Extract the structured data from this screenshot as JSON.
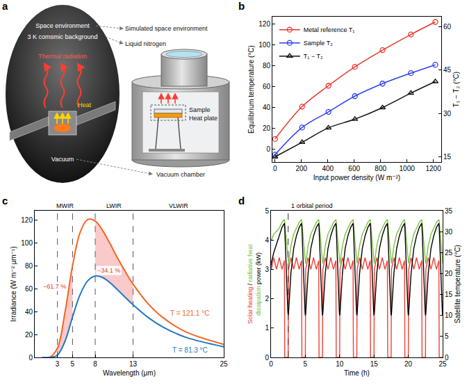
{
  "diagram": {
    "panel": "a",
    "left": {
      "space": "Space environment",
      "background": "3 K comsmic background",
      "radiation": "Thermal radiation",
      "heat": "Heat",
      "vacuum": "Vacuum"
    },
    "right": {
      "space": "Simulated space environment",
      "coolant": "Liquid nitrogen",
      "sample": "Sample",
      "plate": "Heat plate",
      "chamber": "Vacuum chamber"
    }
  },
  "chart_data": [
    {
      "panel": "b",
      "type": "scatter",
      "xlabel": "Input power density (W m⁻²)",
      "ylabel": "Equilibrium temperature (°C)",
      "y2label": "T₁ − T₂ (°C)",
      "x": [
        0,
        205,
        405,
        605,
        815,
        1030,
        1215
      ],
      "series": [
        {
          "name": "Metal reference T₁",
          "color": "#e8342a",
          "marker": "circle-open",
          "line_style": "spline",
          "values": [
            10,
            41,
            61,
            79,
            95,
            110,
            122
          ]
        },
        {
          "name": "Sample T₂",
          "color": "#2b3ff0",
          "marker": "circle-open",
          "line_style": "spline",
          "values": [
            -5,
            21,
            36,
            51,
            63,
            73,
            81
          ]
        },
        {
          "name": "T₁ − T₂",
          "color": "#111111",
          "marker": "triangle-up-open",
          "line_style": "spline",
          "axis": "y2",
          "values": [
            15,
            20,
            25,
            28,
            32,
            37,
            41
          ]
        }
      ],
      "xlim": [
        -20,
        1260
      ],
      "xticks": [
        0,
        200,
        400,
        600,
        800,
        1000,
        1200
      ],
      "ylim": [
        -12,
        127
      ],
      "yticks": [
        0,
        20,
        40,
        60,
        80,
        100,
        120
      ],
      "y2lim": [
        13.2,
        63.4
      ],
      "y2ticks": [
        15,
        30,
        45,
        60
      ],
      "legend": "top-left"
    },
    {
      "panel": "c",
      "type": "line",
      "xlabel": "Wavelength (μm)",
      "ylabel": "Irradiance (W m⁻² μm⁻¹)",
      "x": [
        1,
        2,
        3,
        4,
        5,
        6,
        7,
        8,
        9,
        10,
        11,
        12,
        13,
        15,
        17,
        20,
        25
      ],
      "series": [
        {
          "name": "T = 121.1 °C",
          "color": "#f26522",
          "line_style": "spline",
          "values": [
            0,
            0.14,
            8,
            39.5,
            80,
            109,
            120.3,
            119,
            110.5,
            98.7,
            86.2,
            74.6,
            63.9,
            46.8,
            34.5,
            22.2,
            11.4
          ]
        },
        {
          "name": "T = 81.3 °C",
          "color": "#1f77c4",
          "line_style": "spline",
          "values": [
            0,
            0.02,
            2,
            14.1,
            35.3,
            54.8,
            66.8,
            71,
            69.6,
            64.9,
            58.7,
            52.2,
            45.9,
            34.8,
            26.3,
            17.5,
            9.3
          ]
        }
      ],
      "bands": [
        {
          "name": "MWIR",
          "from": 3,
          "to": 5
        },
        {
          "name": "LWIR",
          "from": 8,
          "to": 13
        },
        {
          "name": "VLWIR",
          "from": 13,
          "to": 25
        }
      ],
      "shaded": [
        {
          "from": 3,
          "to": 5,
          "label": "−61.7 %"
        },
        {
          "from": 8,
          "to": 13,
          "label": "−34.1 %"
        }
      ],
      "xlim": [
        0,
        25
      ],
      "xticks": [
        3,
        5,
        8,
        13,
        25
      ],
      "ylim": [
        0,
        128
      ],
      "yticks": [
        0,
        20,
        40,
        60,
        80,
        100,
        120
      ]
    },
    {
      "panel": "d",
      "type": "line",
      "xlabel": "Time (h)",
      "ylabel": "Solar heating / radiative heat dissipation power (kW)",
      "y2label": "Satellite temperature (°C)",
      "x": [
        0,
        0.05,
        0.4,
        0.8,
        1.2,
        1.6,
        1.95,
        2,
        2.45,
        2.5,
        2.55,
        2.9,
        3.3,
        3.7,
        4.1,
        4.45,
        4.5,
        4.95,
        5,
        5.05,
        5.4,
        5.8,
        6.2,
        6.6,
        6.95,
        7,
        7.45,
        7.5,
        7.55,
        7.9,
        8.3,
        8.7,
        9.1,
        9.45,
        9.5,
        9.95,
        10,
        10.05,
        10.4,
        10.8,
        11.2,
        11.6,
        11.95,
        12,
        12.45,
        12.5,
        12.55,
        12.9,
        13.3,
        13.7,
        14.1,
        14.45,
        14.5,
        14.95,
        15,
        15.05,
        15.4,
        15.8,
        16.2,
        16.6,
        16.95,
        17,
        17.45,
        17.5,
        17.55,
        17.9,
        18.3,
        18.7,
        19.1,
        19.45,
        19.5,
        19.95,
        20,
        20.05,
        20.4,
        20.8,
        21.2,
        21.6,
        21.95,
        22,
        22.45,
        22.5,
        22.55,
        22.9,
        23.3,
        23.7,
        24.1,
        24.45,
        24.5,
        24.95,
        25
      ],
      "series": [
        {
          "name": "Solar heating",
          "color": "#ef4136",
          "line_style": "solid",
          "values": [
            3.3,
            3,
            3.4,
            3,
            3.4,
            3,
            3.3,
            0,
            0,
            0,
            3,
            3.4,
            3,
            3.4,
            3,
            3.3,
            0,
            0,
            0,
            3,
            3.4,
            3,
            3.4,
            3,
            3.3,
            0,
            0,
            0,
            3,
            3.4,
            3,
            3.4,
            3,
            3.3,
            0,
            0,
            0,
            3,
            3.4,
            3,
            3.4,
            3,
            3.3,
            0,
            0,
            0,
            3,
            3.4,
            3,
            3.4,
            3,
            3.3,
            0,
            0,
            0,
            3,
            3.4,
            3,
            3.4,
            3,
            3.3,
            0,
            0,
            0,
            3,
            3.4,
            3,
            3.4,
            3,
            3.3,
            0,
            0,
            0,
            3,
            3.4,
            3,
            3.4,
            3,
            3.3,
            0,
            0,
            0,
            3,
            3.4,
            3,
            3.4,
            3,
            3.3,
            0,
            0,
            0
          ]
        },
        {
          "name": "radiative heat dissipation",
          "color": "#7dc242",
          "line_style": "solid",
          "values": [
            4,
            4,
            4.2,
            4.3,
            4.4,
            4.6,
            4.7,
            4.6,
            3.4,
            3.2,
            3.2,
            3.8,
            4.2,
            4.4,
            4.6,
            4.7,
            4.6,
            3.4,
            3.2,
            3.2,
            3.8,
            4.2,
            4.4,
            4.6,
            4.7,
            4.6,
            3.4,
            3.2,
            3.2,
            3.8,
            4.2,
            4.4,
            4.6,
            4.7,
            4.6,
            3.4,
            3.2,
            3.2,
            3.8,
            4.2,
            4.4,
            4.6,
            4.7,
            4.6,
            3.4,
            3.2,
            3.2,
            3.8,
            4.2,
            4.4,
            4.6,
            4.7,
            4.6,
            3.4,
            3.2,
            3.2,
            3.8,
            4.2,
            4.4,
            4.6,
            4.7,
            4.6,
            3.4,
            3.2,
            3.2,
            3.8,
            4.2,
            4.4,
            4.6,
            4.7,
            4.6,
            3.4,
            3.2,
            3.2,
            3.8,
            4.2,
            4.4,
            4.6,
            4.7,
            4.6,
            3.4,
            3.2,
            3.2,
            3.8,
            4.2,
            4.4,
            4.6,
            4.7,
            4.6,
            3.4,
            3.2
          ]
        },
        {
          "name": "Satellite temperature",
          "color": "#000000",
          "line_style": "solid",
          "axis": "y2",
          "values": [
            22,
            22.5,
            25,
            27,
            29,
            31,
            32,
            31,
            11,
            10,
            10.5,
            20,
            26,
            29,
            31,
            32,
            31,
            11,
            10,
            10.5,
            20,
            26,
            29,
            31,
            32,
            31,
            11,
            10,
            10.5,
            20,
            26,
            29,
            31,
            32,
            31,
            11,
            10,
            10.5,
            20,
            26,
            29,
            31,
            32,
            31,
            11,
            10,
            10.5,
            20,
            26,
            29,
            31,
            32,
            31,
            11,
            10,
            10.5,
            20,
            26,
            29,
            31,
            32,
            31,
            11,
            10,
            10.5,
            20,
            26,
            29,
            31,
            32,
            31,
            11,
            10,
            10.5,
            20,
            26,
            29,
            31,
            32,
            31,
            11,
            10,
            10.5,
            20,
            26,
            29,
            31,
            32,
            31,
            11,
            10
          ]
        }
      ],
      "annotations": [
        {
          "text": "1 orbital period",
          "x": 2.5
        }
      ],
      "xlim": [
        0,
        25
      ],
      "xticks": [
        0,
        5,
        10,
        15,
        20,
        25
      ],
      "ylim": [
        0,
        5
      ],
      "yticks": [
        0,
        1,
        2,
        3,
        4,
        5
      ],
      "y2lim": [
        0,
        35
      ],
      "y2ticks": [
        0,
        5,
        10,
        15,
        20,
        25,
        30,
        35
      ]
    }
  ]
}
